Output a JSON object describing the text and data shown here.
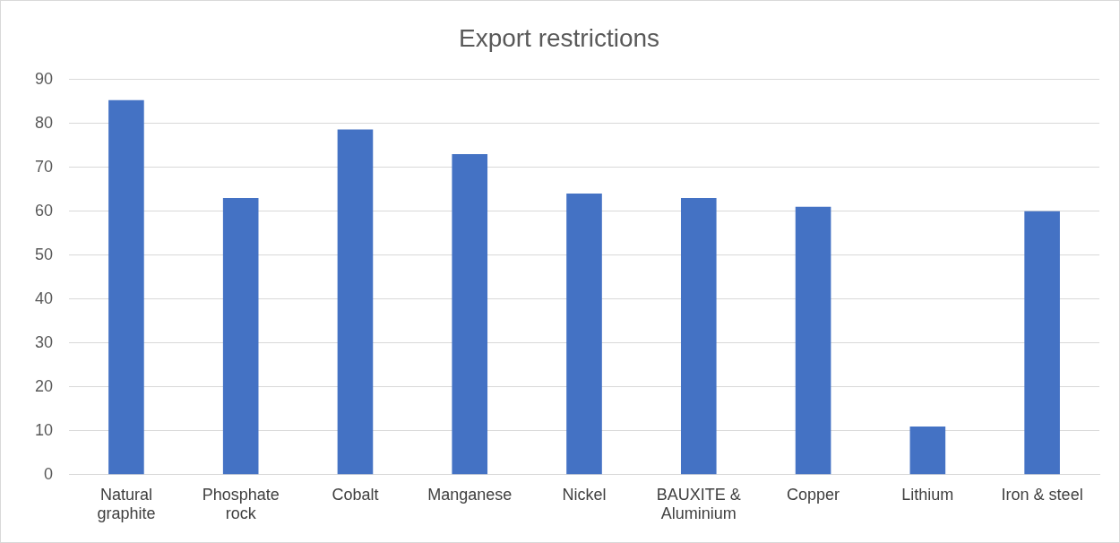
{
  "chart_data": {
    "type": "bar",
    "title": "Export restrictions",
    "categories": [
      "Natural graphite",
      "Phosphate rock",
      "Cobalt",
      "Manganese",
      "Nickel",
      "BAUXITE & Aluminium",
      "Copper",
      "Lithium",
      "Iron & steel"
    ],
    "values": [
      85.3,
      63,
      78.6,
      73,
      64,
      63,
      61,
      11,
      60
    ],
    "color": "#4472c4",
    "ylim": [
      0,
      90
    ],
    "yticks": [
      0,
      10,
      20,
      30,
      40,
      50,
      60,
      70,
      80,
      90
    ],
    "grid": "y",
    "legend": false
  }
}
